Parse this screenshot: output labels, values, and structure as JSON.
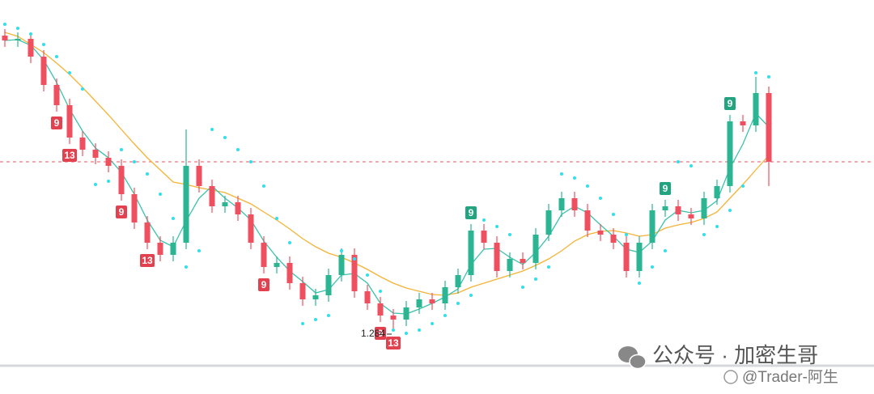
{
  "chart_data": {
    "type": "candlestick",
    "ylim": [
      1.207,
      1.694
    ],
    "up_color": "#2bb592",
    "down_color": "#ef4f5e",
    "open": [
      1.65,
      1.644,
      1.646,
      1.624,
      1.589,
      1.564,
      1.524,
      1.509,
      1.499,
      1.489,
      1.454,
      1.419,
      1.394,
      1.379,
      1.394,
      1.489,
      1.464,
      1.439,
      1.444,
      1.429,
      1.394,
      1.364,
      1.369,
      1.344,
      1.324,
      1.329,
      1.354,
      1.379,
      1.334,
      1.319,
      1.304,
      1.299,
      1.314,
      1.324,
      1.319,
      1.339,
      1.354,
      1.409,
      1.394,
      1.359,
      1.374,
      1.369,
      1.404,
      1.434,
      1.449,
      1.434,
      1.409,
      1.404,
      1.394,
      1.359,
      1.394,
      1.434,
      1.439,
      1.429,
      1.424,
      1.449,
      1.464,
      1.544,
      1.539,
      1.579
    ],
    "high": [
      1.658,
      1.654,
      1.654,
      1.632,
      1.597,
      1.572,
      1.532,
      1.517,
      1.507,
      1.497,
      1.462,
      1.427,
      1.402,
      1.402,
      1.534,
      1.497,
      1.472,
      1.452,
      1.452,
      1.437,
      1.402,
      1.377,
      1.377,
      1.352,
      1.337,
      1.362,
      1.387,
      1.387,
      1.342,
      1.327,
      1.312,
      1.322,
      1.332,
      1.332,
      1.347,
      1.362,
      1.417,
      1.417,
      1.402,
      1.382,
      1.382,
      1.412,
      1.442,
      1.457,
      1.457,
      1.442,
      1.417,
      1.412,
      1.402,
      1.402,
      1.442,
      1.447,
      1.447,
      1.437,
      1.457,
      1.472,
      1.552,
      1.552,
      1.599,
      1.587
    ],
    "low": [
      1.636,
      1.636,
      1.616,
      1.581,
      1.556,
      1.516,
      1.501,
      1.491,
      1.481,
      1.446,
      1.411,
      1.386,
      1.371,
      1.371,
      1.386,
      1.456,
      1.431,
      1.431,
      1.421,
      1.386,
      1.356,
      1.356,
      1.336,
      1.316,
      1.316,
      1.321,
      1.346,
      1.326,
      1.311,
      1.296,
      1.284,
      1.291,
      1.306,
      1.311,
      1.311,
      1.331,
      1.346,
      1.386,
      1.351,
      1.351,
      1.361,
      1.361,
      1.396,
      1.426,
      1.426,
      1.401,
      1.396,
      1.386,
      1.351,
      1.351,
      1.386,
      1.426,
      1.421,
      1.416,
      1.416,
      1.441,
      1.456,
      1.531,
      1.531,
      1.464
    ],
    "close": [
      1.644,
      1.646,
      1.624,
      1.589,
      1.564,
      1.524,
      1.509,
      1.499,
      1.489,
      1.454,
      1.419,
      1.394,
      1.379,
      1.394,
      1.489,
      1.464,
      1.439,
      1.444,
      1.429,
      1.394,
      1.364,
      1.369,
      1.344,
      1.324,
      1.329,
      1.354,
      1.379,
      1.334,
      1.319,
      1.304,
      1.299,
      1.314,
      1.324,
      1.319,
      1.339,
      1.354,
      1.409,
      1.394,
      1.359,
      1.374,
      1.369,
      1.404,
      1.434,
      1.449,
      1.434,
      1.409,
      1.404,
      1.394,
      1.359,
      1.394,
      1.434,
      1.439,
      1.429,
      1.424,
      1.449,
      1.464,
      1.544,
      1.539,
      1.579,
      1.494
    ],
    "lines": [
      {
        "color": "#f5b335",
        "values": [
          1.654,
          1.649,
          1.639,
          1.629,
          1.616,
          1.602,
          1.586,
          1.569,
          1.552,
          1.534,
          1.516,
          1.499,
          1.484,
          1.469,
          1.466,
          1.462,
          1.459,
          1.456,
          1.449,
          1.442,
          1.432,
          1.422,
          1.411,
          1.399,
          1.389,
          1.381,
          1.376,
          1.369,
          1.361,
          1.352,
          1.344,
          1.338,
          1.334,
          1.33,
          1.329,
          1.332,
          1.339,
          1.344,
          1.349,
          1.354,
          1.359,
          1.366,
          1.374,
          1.384,
          1.396,
          1.404,
          1.408,
          1.409,
          1.406,
          1.402,
          1.404,
          1.412,
          1.416,
          1.419,
          1.424,
          1.432,
          1.449,
          1.466,
          1.484,
          1.502
        ]
      },
      {
        "color": "#3cc2ac",
        "values": [
          1.644,
          1.645,
          1.638,
          1.62,
          1.592,
          1.559,
          1.532,
          1.511,
          1.499,
          1.481,
          1.454,
          1.422,
          1.397,
          1.389,
          1.421,
          1.449,
          1.464,
          1.449,
          1.437,
          1.422,
          1.396,
          1.376,
          1.359,
          1.346,
          1.332,
          1.336,
          1.354,
          1.356,
          1.344,
          1.319,
          1.307,
          1.306,
          1.312,
          1.319,
          1.327,
          1.337,
          1.367,
          1.386,
          1.387,
          1.376,
          1.367,
          1.382,
          1.402,
          1.429,
          1.439,
          1.431,
          1.416,
          1.402,
          1.386,
          1.382,
          1.396,
          1.422,
          1.434,
          1.431,
          1.434,
          1.446,
          1.486,
          1.516,
          1.554,
          1.537
        ]
      }
    ],
    "sar": {
      "color": "#2fe0e8",
      "values": [
        1.664,
        1.659,
        1.652,
        1.639,
        1.624,
        1.604,
        1.584,
        1.466,
        1.47,
        1.509,
        1.494,
        1.479,
        1.454,
        1.424,
        1.364,
        1.384,
        1.534,
        1.524,
        1.509,
        1.494,
        1.464,
        1.424,
        1.394,
        1.294,
        1.299,
        1.304,
        1.384,
        1.374,
        1.354,
        1.334,
        1.286,
        1.282,
        1.286,
        1.294,
        1.304,
        1.319,
        1.329,
        1.422,
        1.414,
        1.404,
        1.339,
        1.349,
        1.364,
        1.479,
        1.474,
        1.464,
        1.449,
        1.429,
        1.404,
        1.344,
        1.364,
        1.384,
        1.494,
        1.489,
        1.404,
        1.414,
        1.434,
        1.464,
        1.604,
        1.599
      ]
    },
    "td_labels": [
      {
        "text": "9",
        "candle": 4,
        "side": "below",
        "color": "#e2414f"
      },
      {
        "text": "13",
        "candle": 5,
        "side": "below",
        "color": "#e2414f"
      },
      {
        "text": "9",
        "candle": 9,
        "side": "below",
        "color": "#e2414f"
      },
      {
        "text": "13",
        "candle": 11,
        "side": "below",
        "color": "#e2414f"
      },
      {
        "text": "9",
        "candle": 20,
        "side": "below",
        "color": "#e2414f"
      },
      {
        "text": "9",
        "candle": 29,
        "side": "below",
        "color": "#e2414f"
      },
      {
        "text": "13",
        "candle": 30,
        "side": "below",
        "color": "#e2414f"
      },
      {
        "text": "9",
        "candle": 36,
        "side": "above",
        "color": "#21a47f"
      },
      {
        "text": "9",
        "candle": 51,
        "side": "above",
        "color": "#21a47f"
      },
      {
        "text": "9",
        "candle": 56,
        "side": "above",
        "color": "#21a47f"
      }
    ],
    "low_annotation_candle": 30,
    "last_price_line_color": "#e8545c",
    "watermark": [
      "公众号 · 加密生哥",
      "@Trader-阿生"
    ]
  }
}
